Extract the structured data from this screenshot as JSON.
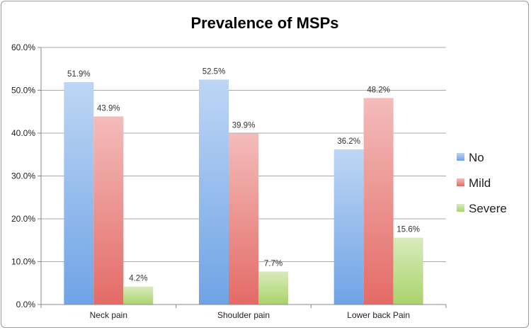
{
  "chart_data": {
    "type": "bar",
    "title": "Prevalence of MSPs",
    "categories": [
      "Neck pain",
      "Shoulder pain",
      "Lower back Pain"
    ],
    "series": [
      {
        "name": "No",
        "values": [
          51.9,
          52.5,
          36.2
        ],
        "labels": [
          "51.9%",
          "52.5%",
          "36.2%"
        ],
        "color": "#6fa3e6"
      },
      {
        "name": "Mild",
        "values": [
          43.9,
          39.9,
          48.2
        ],
        "labels": [
          "43.9%",
          "39.9%",
          "48.2%"
        ],
        "color": "#e46b66"
      },
      {
        "name": "Severe",
        "values": [
          4.2,
          7.7,
          15.6
        ],
        "labels": [
          "4.2%",
          "7.7%",
          "15.6%"
        ],
        "color": "#a9d36a"
      }
    ],
    "ylim": [
      0,
      60
    ],
    "yticks": [
      0,
      10,
      20,
      30,
      40,
      50,
      60
    ],
    "ytick_labels": [
      "0.0%",
      "10.0%",
      "20.0%",
      "30.0%",
      "40.0%",
      "50.0%",
      "60.0%"
    ],
    "xlabel": "",
    "ylabel": "",
    "grid": true,
    "legend_position": "right"
  }
}
